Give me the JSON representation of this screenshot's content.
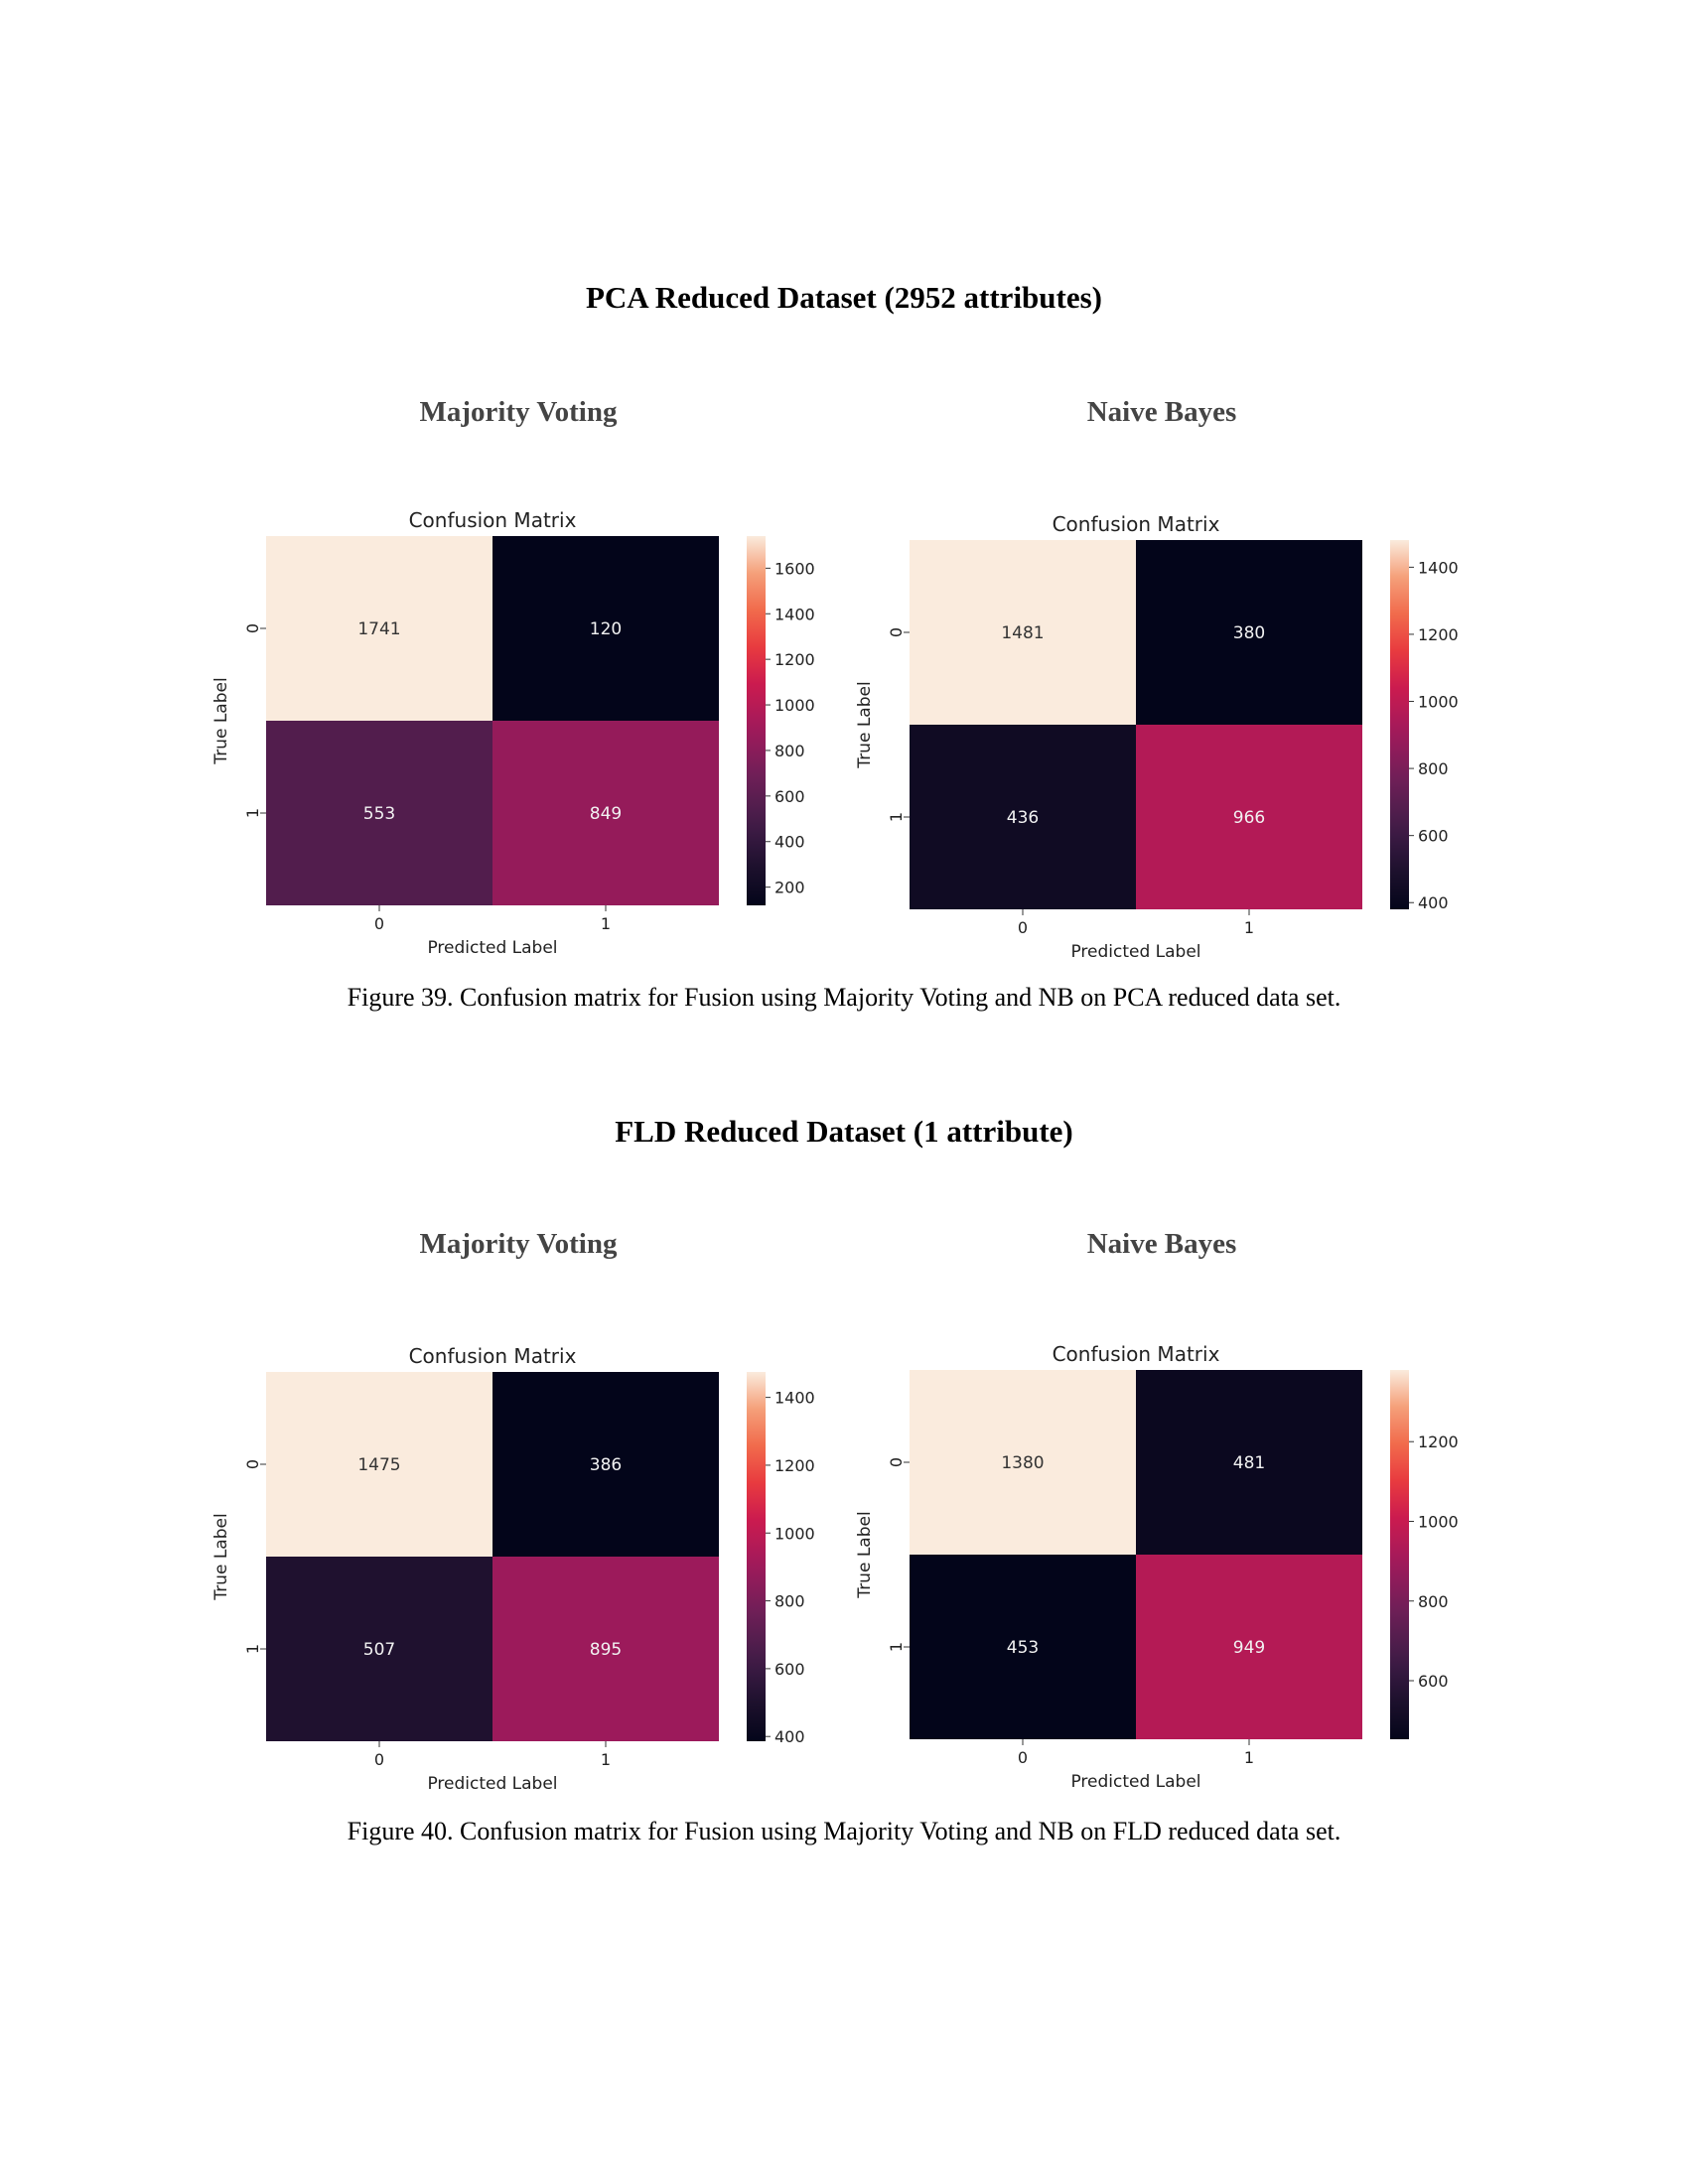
{
  "sections": [
    {
      "title": "PCA Reduced Dataset (2952 attributes)",
      "left_label": "Majority Voting",
      "right_label": "Naive Bayes",
      "caption": "Figure 39. Confusion matrix for Fusion using Majority Voting and NB on PCA reduced data set."
    },
    {
      "title": "FLD Reduced Dataset (1 attribute)",
      "left_label": "Majority Voting",
      "right_label": "Naive Bayes",
      "caption": "Figure 40. Confusion matrix for Fusion using Majority Voting and NB on FLD reduced data set."
    }
  ],
  "chart_data": [
    {
      "type": "heatmap",
      "title": "Confusion Matrix",
      "xlabel": "Predicted Label",
      "ylabel": "True Label",
      "x_categories": [
        "0",
        "1"
      ],
      "y_categories": [
        "0",
        "1"
      ],
      "values": [
        [
          1741,
          120
        ],
        [
          553,
          849
        ]
      ],
      "colorbar_range": [
        120,
        1741
      ],
      "colorbar_ticks": [
        200,
        400,
        600,
        800,
        1000,
        1200,
        1400,
        1600
      ]
    },
    {
      "type": "heatmap",
      "title": "Confusion Matrix",
      "xlabel": "Predicted Label",
      "ylabel": "True Label",
      "x_categories": [
        "0",
        "1"
      ],
      "y_categories": [
        "0",
        "1"
      ],
      "values": [
        [
          1481,
          380
        ],
        [
          436,
          966
        ]
      ],
      "colorbar_range": [
        380,
        1481
      ],
      "colorbar_ticks": [
        400,
        600,
        800,
        1000,
        1200,
        1400
      ]
    },
    {
      "type": "heatmap",
      "title": "Confusion Matrix",
      "xlabel": "Predicted Label",
      "ylabel": "True Label",
      "x_categories": [
        "0",
        "1"
      ],
      "y_categories": [
        "0",
        "1"
      ],
      "values": [
        [
          1475,
          386
        ],
        [
          507,
          895
        ]
      ],
      "colorbar_range": [
        386,
        1475
      ],
      "colorbar_ticks": [
        400,
        600,
        800,
        1000,
        1200,
        1400
      ]
    },
    {
      "type": "heatmap",
      "title": "Confusion Matrix",
      "xlabel": "Predicted Label",
      "ylabel": "True Label",
      "x_categories": [
        "0",
        "1"
      ],
      "y_categories": [
        "0",
        "1"
      ],
      "values": [
        [
          1380,
          481
        ],
        [
          453,
          949
        ]
      ],
      "colorbar_range": [
        453,
        1380
      ],
      "colorbar_ticks": [
        600,
        800,
        1000,
        1200
      ]
    }
  ]
}
